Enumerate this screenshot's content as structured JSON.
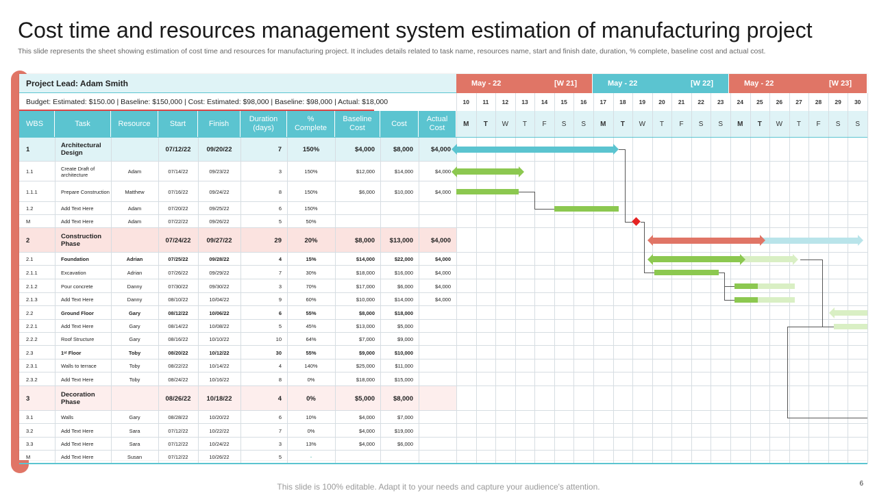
{
  "title": "Cost time and resources management system estimation of manufacturing project",
  "subtitle": "This slide represents the sheet showing estimation of cost time and resources for manufacturing project. It includes details related to task name, resources name, start and finish date, duration, % complete, baseline cost and actual cost.",
  "project_lead": "Project Lead: Adam Smith",
  "budget_line": "Budget: Estimated:   $150.00 | Baseline: $150,000 | Cost: Estimated: $98,000 | Baseline: $98,000 | Actual: $18,000",
  "footer": "This slide is 100% editable. Adapt it to your needs and capture your audience's attention.",
  "page_number": "6",
  "colors": {
    "teal": "#5bc4d0",
    "coral": "#e07566",
    "green": "#8cc850",
    "light_green": "#d9efc4",
    "light_teal": "#b9e4ea",
    "header_light": "#dff3f6",
    "phase_pink": "#fbe3e0",
    "diamond": "#e52222"
  },
  "columns": [
    "WBS",
    "Task",
    "Resource",
    "Start",
    "Finish",
    "Duration\n(days)",
    "%\nComplete",
    "Baseline\nCost",
    "Cost",
    "Actual\nCost"
  ],
  "weeks": [
    {
      "month": "May - 22",
      "week": "[W 21]",
      "color": "#e07566"
    },
    {
      "month": "May - 22",
      "week": "[W 22]",
      "color": "#5bc4d0"
    },
    {
      "month": "May - 22",
      "week": "[W 23]",
      "color": "#e07566"
    }
  ],
  "days": [
    "10",
    "11",
    "12",
    "13",
    "14",
    "15",
    "16",
    "17",
    "18",
    "19",
    "20",
    "21",
    "22",
    "23",
    "24",
    "25",
    "26",
    "27",
    "28",
    "29",
    "30"
  ],
  "weekdays": [
    "M",
    "T",
    "W",
    "T",
    "F",
    "S",
    "S",
    "M",
    "T",
    "W",
    "T",
    "F",
    "S",
    "S",
    "M",
    "T",
    "W",
    "T",
    "F",
    "S",
    "S"
  ],
  "rows": [
    {
      "type": "phase",
      "wbs": "1",
      "task": "Architectural Design",
      "resource": "",
      "start": "07/12/22",
      "finish": "09/20/22",
      "duration": "7",
      "complete": "150%",
      "baseline": "$4,000",
      "cost": "$8,000",
      "actual": "$4,000",
      "highlight": "#dff3f6"
    },
    {
      "type": "task",
      "wbs": "1.1",
      "task": "Create Draft of architecture",
      "resource": "Adam",
      "start": "07/14/22",
      "finish": "09/23/22",
      "duration": "3",
      "complete": "150%",
      "baseline": "$12,000",
      "cost": "$14,000",
      "actual": "$4,000"
    },
    {
      "type": "task",
      "wbs": "1.1.1",
      "task": "Prepare Construction",
      "resource": "Matthew",
      "start": "07/16/22",
      "finish": "09/24/22",
      "duration": "8",
      "complete": "150%",
      "baseline": "$6,000",
      "cost": "$10,000",
      "actual": "$4,000"
    },
    {
      "type": "task",
      "wbs": "1.2",
      "task": "Add Text Here",
      "resource": "Adam",
      "start": "07/20/22",
      "finish": "09/25/22",
      "duration": "6",
      "complete": "150%",
      "baseline": "",
      "cost": "",
      "actual": ""
    },
    {
      "type": "task",
      "wbs": "M",
      "task": "Add Text Here",
      "resource": "Adam",
      "start": "07/22/22",
      "finish": "09/26/22",
      "duration": "5",
      "complete": "50%",
      "baseline": "",
      "cost": "",
      "actual": ""
    },
    {
      "type": "phase",
      "wbs": "2",
      "task": "Construction Phase",
      "resource": "",
      "start": "07/24/22",
      "finish": "09/27/22",
      "duration": "29",
      "complete": "20%",
      "baseline": "$8,000",
      "cost": "$13,000",
      "actual": "$4,000",
      "highlight": "#fbe3e0"
    },
    {
      "type": "task",
      "wbs": "2.1",
      "task": "Foundation",
      "resource": "Adrian",
      "start": "07/25/22",
      "finish": "09/28/22",
      "duration": "4",
      "complete": "15%",
      "baseline": "$14,000",
      "cost": "$22,000",
      "actual": "$4,000",
      "bold": true
    },
    {
      "type": "task",
      "wbs": "2.1.1",
      "task": "Excavation",
      "resource": "Adrian",
      "start": "07/26/22",
      "finish": "09/29/22",
      "duration": "7",
      "complete": "30%",
      "baseline": "$18,000",
      "cost": "$16,000",
      "actual": "$4,000"
    },
    {
      "type": "task",
      "wbs": "2.1.2",
      "task": "Pour concrete",
      "resource": "Danny",
      "start": "07/30/22",
      "finish": "09/30/22",
      "duration": "3",
      "complete": "70%",
      "baseline": "$17,000",
      "cost": "$6,000",
      "actual": "$4,000"
    },
    {
      "type": "task",
      "wbs": "2.1.3",
      "task": "Add Text Here",
      "resource": "Danny",
      "start": "08/10/22",
      "finish": "10/04/22",
      "duration": "9",
      "complete": "60%",
      "baseline": "$10,000",
      "cost": "$14,000",
      "actual": "$4,000"
    },
    {
      "type": "task",
      "wbs": "2.2",
      "task": "Ground Floor",
      "resource": "Gary",
      "start": "08/12/22",
      "finish": "10/06/22",
      "duration": "6",
      "complete": "55%",
      "baseline": "$8,000",
      "cost": "$18,000",
      "actual": "",
      "bold": true
    },
    {
      "type": "task",
      "wbs": "2.2.1",
      "task": "Add Text Here",
      "resource": "Gary",
      "start": "08/14/22",
      "finish": "10/08/22",
      "duration": "5",
      "complete": "45%",
      "baseline": "$13,000",
      "cost": "$5,000",
      "actual": ""
    },
    {
      "type": "task",
      "wbs": "2.2.2",
      "task": "Roof Structure",
      "resource": "Gary",
      "start": "08/16/22",
      "finish": "10/10/22",
      "duration": "10",
      "complete": "64%",
      "baseline": "$7,000",
      "cost": "$9,000",
      "actual": ""
    },
    {
      "type": "task",
      "wbs": "2.3",
      "task": "1ˢᵗ Floor",
      "resource": "Toby",
      "start": "08/20/22",
      "finish": "10/12/22",
      "duration": "30",
      "complete": "55%",
      "baseline": "$9,000",
      "cost": "$10,000",
      "actual": "",
      "bold": true
    },
    {
      "type": "task",
      "wbs": "2.3.1",
      "task": "Walls to terrace",
      "resource": "Toby",
      "start": "08/22/22",
      "finish": "10/14/22",
      "duration": "4",
      "complete": "140%",
      "baseline": "$25,000",
      "cost": "$11,000",
      "actual": ""
    },
    {
      "type": "task",
      "wbs": "2.3.2",
      "task": "Add Text Here",
      "resource": "Toby",
      "start": "08/24/22",
      "finish": "10/16/22",
      "duration": "8",
      "complete": "0%",
      "baseline": "$18,000",
      "cost": "$15,000",
      "actual": ""
    },
    {
      "type": "phase",
      "wbs": "3",
      "task": "Decoration Phase",
      "resource": "",
      "start": "08/26/22",
      "finish": "10/18/22",
      "duration": "4",
      "complete": "0%",
      "baseline": "$5,000",
      "cost": "$8,000",
      "actual": "",
      "highlight": "#fdeeed"
    },
    {
      "type": "task",
      "wbs": "3.1",
      "task": "Walls",
      "resource": "Gary",
      "start": "08/28/22",
      "finish": "10/20/22",
      "duration": "6",
      "complete": "10%",
      "baseline": "$4,000",
      "cost": "$7,000",
      "actual": ""
    },
    {
      "type": "task",
      "wbs": "3.2",
      "task": "Add Text Here",
      "resource": "Sara",
      "start": "07/12/22",
      "finish": "10/22/22",
      "duration": "7",
      "complete": "0%",
      "baseline": "$4,000",
      "cost": "$19,000",
      "actual": ""
    },
    {
      "type": "task",
      "wbs": "3.3",
      "task": "Add Text Here",
      "resource": "Sara",
      "start": "07/12/22",
      "finish": "10/24/22",
      "duration": "3",
      "complete": "13%",
      "baseline": "$4,000",
      "cost": "$6,000",
      "actual": ""
    },
    {
      "type": "task",
      "wbs": "M",
      "task": "Add Text Here",
      "resource": "Susan",
      "start": "07/12/22",
      "finish": "10/26/22",
      "duration": "5",
      "complete": "-",
      "baseline": "",
      "cost": "",
      "actual": ""
    }
  ],
  "gantt_bars": [
    {
      "row": 0,
      "start_day": 0,
      "end_day": 8.0,
      "color": "#5bc4d0",
      "style": "arrow",
      "progress_end": 8.0,
      "progress_color": "#5bc4d0"
    },
    {
      "row": 1,
      "start_day": 0,
      "end_day": 3.2,
      "color": "#8cc850",
      "style": "arrow",
      "progress_end": 3.2,
      "progress_color": "#8cc850"
    },
    {
      "row": 2,
      "start_day": 0,
      "end_day": 3.2,
      "color": "#8cc850",
      "style": "plain",
      "progress_end": 3.2,
      "progress_color": "#8cc850"
    },
    {
      "row": 3,
      "start_day": 5.0,
      "end_day": 8.3,
      "color": "#8cc850",
      "style": "plain",
      "progress_end": 8.3,
      "progress_color": "#8cc850"
    },
    {
      "row": 5,
      "start_day": 10.0,
      "end_day": 20.5,
      "color": "#b9e4ea",
      "style": "arrow",
      "progress_end": 15.5,
      "progress_color": "#e07566"
    },
    {
      "row": 6,
      "start_day": 10.0,
      "end_day": 17.2,
      "color": "#d9efc4",
      "style": "arrow",
      "progress_end": 14.5,
      "progress_color": "#8cc850"
    },
    {
      "row": 7,
      "start_day": 10.1,
      "end_day": 13.4,
      "color": "#8cc850",
      "style": "plain",
      "progress_end": 13.4,
      "progress_color": "#8cc850"
    },
    {
      "row": 8,
      "start_day": 14.2,
      "end_day": 17.3,
      "color": "#d9efc4",
      "style": "plain",
      "progress_end": 15.4,
      "progress_color": "#8cc850"
    },
    {
      "row": 9,
      "start_day": 14.2,
      "end_day": 17.3,
      "color": "#d9efc4",
      "style": "plain",
      "progress_end": 15.4,
      "progress_color": "#8cc850"
    },
    {
      "row": 10,
      "start_day": 19.3,
      "end_day": 21,
      "color": "#d9efc4",
      "style": "leftarrow",
      "progress_end": 21,
      "progress_color": "#d9efc4"
    },
    {
      "row": 11,
      "start_day": 19.3,
      "end_day": 21,
      "color": "#d9efc4",
      "style": "plain",
      "progress_end": 21,
      "progress_color": "#d9efc4"
    }
  ],
  "milestone": {
    "row": 4,
    "day": 9.2
  }
}
